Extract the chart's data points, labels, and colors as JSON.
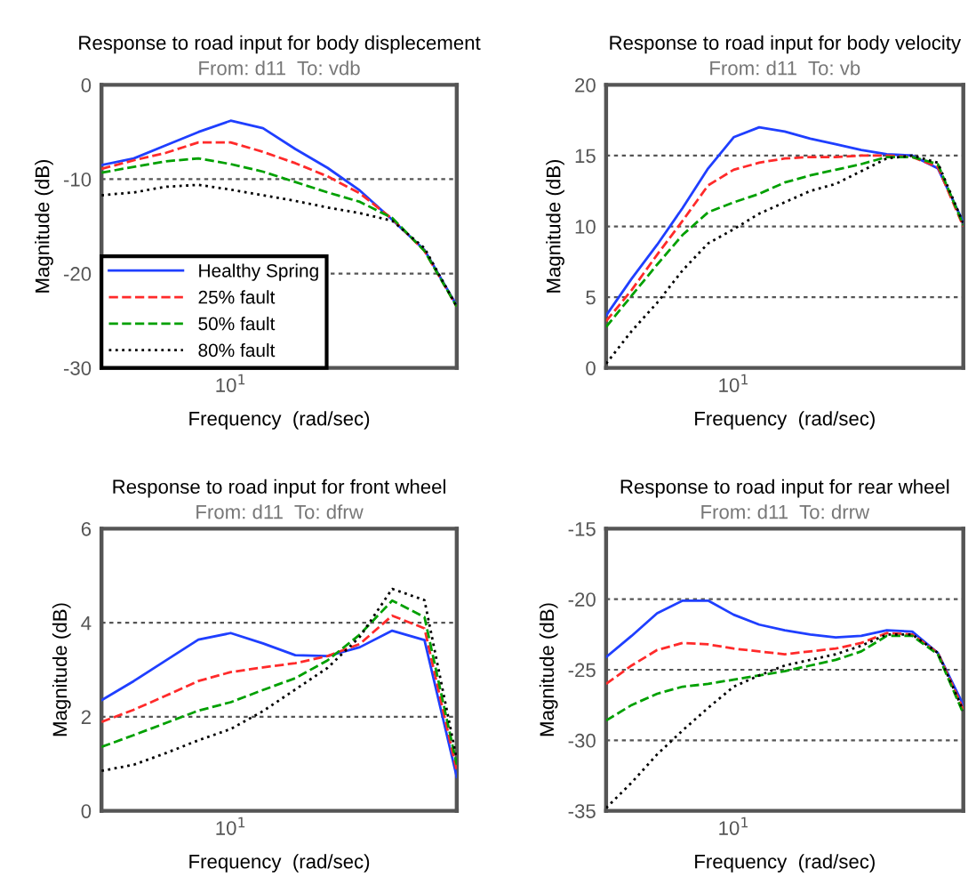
{
  "chart_data": [
    {
      "type": "line",
      "title": "Response to road input for body displecement",
      "subtitle": "From: d11  To: vdb",
      "xlabel": "Frequency  (rad/sec)",
      "ylabel": "Magnitude (dB)",
      "grid": "y",
      "legend": "bottom left",
      "marker": "none",
      "categories": [
        null,
        null,
        null,
        null,
        "10$^{1}$",
        null,
        null,
        null,
        null,
        null,
        null,
        null
      ],
      "ylim": [
        -30,
        0
      ],
      "yticks": [
        -30,
        -20,
        -10,
        0
      ],
      "series": [
        {
          "name": "Healthy Spring",
          "color": "#1f3fff",
          "line_style": "solid",
          "values": [
            -8.5,
            -7.8,
            -6.4,
            -5.0,
            -3.8,
            -4.6,
            -6.8,
            -8.8,
            -11.2,
            -14.3,
            -17.5,
            -23.4
          ]
        },
        {
          "name": "25% fault",
          "color": "#ff2a2a",
          "line_style": "dashed",
          "values": [
            -8.9,
            -8.0,
            -7.2,
            -6.1,
            -6.1,
            -7.1,
            -8.3,
            -9.7,
            -11.5,
            -14.2,
            -17.6,
            -23.5
          ]
        },
        {
          "name": "50% fault",
          "color": "#00a000",
          "line_style": "dashed",
          "values": [
            -9.3,
            -8.7,
            -8.1,
            -7.8,
            -8.4,
            -9.2,
            -10.3,
            -11.4,
            -12.4,
            -14.1,
            -17.6,
            -23.5
          ]
        },
        {
          "name": "80% fault",
          "color": "#000000",
          "line_style": "dotted",
          "values": [
            -11.7,
            -11.4,
            -10.8,
            -10.6,
            -11.1,
            -11.7,
            -12.3,
            -13.0,
            -13.6,
            -14.4,
            -17.3,
            -23.5
          ]
        }
      ]
    },
    {
      "type": "line",
      "title": "Response to road input for body velocity",
      "subtitle": "From: d11  To: vb",
      "xlabel": "Frequency  (rad/sec)",
      "ylabel": "Magnitude (dB)",
      "grid": "y",
      "marker": "none",
      "categories": [
        null,
        null,
        null,
        null,
        null,
        "10$^{1}$",
        null,
        null,
        null,
        null,
        null,
        null,
        null,
        null,
        null
      ],
      "ylim": [
        0,
        20
      ],
      "yticks": [
        0,
        5,
        10,
        15,
        20
      ],
      "series": [
        {
          "color": "#1f3fff",
          "line_style": "solid",
          "values": [
            3.7,
            6.3,
            8.7,
            11.3,
            14.1,
            16.3,
            17.0,
            16.7,
            16.2,
            15.8,
            15.4,
            15.1,
            15.0,
            14.1,
            10.3
          ]
        },
        {
          "color": "#ff2a2a",
          "line_style": "dashed",
          "values": [
            3.3,
            5.5,
            8.0,
            10.4,
            12.9,
            14.0,
            14.5,
            14.8,
            14.9,
            14.9,
            15.0,
            15.0,
            14.9,
            14.2,
            10.0
          ]
        },
        {
          "color": "#00a000",
          "line_style": "dashed",
          "values": [
            2.9,
            5.1,
            7.3,
            9.4,
            11.0,
            11.7,
            12.3,
            13.1,
            13.6,
            14.0,
            14.4,
            14.9,
            14.9,
            14.4,
            10.1
          ]
        },
        {
          "color": "#000000",
          "line_style": "dotted",
          "values": [
            0.3,
            2.6,
            4.6,
            6.9,
            8.8,
            9.8,
            10.9,
            11.7,
            12.5,
            13.0,
            13.9,
            14.8,
            15.0,
            14.5,
            10.2
          ]
        }
      ]
    },
    {
      "type": "line",
      "title": "Response to road input for front wheel",
      "subtitle": "From: d11  To: dfrw",
      "xlabel": "Frequency  (rad/sec)",
      "ylabel": "Magnitude (dB)",
      "grid": "y",
      "marker": "none",
      "categories": [
        null,
        null,
        null,
        null,
        "10$^{1}$",
        null,
        null,
        null,
        null,
        null,
        null,
        null
      ],
      "ylim": [
        0,
        6
      ],
      "yticks": [
        0,
        2,
        4,
        6
      ],
      "series": [
        {
          "color": "#1f3fff",
          "line_style": "solid",
          "values": [
            2.35,
            2.76,
            3.2,
            3.64,
            3.78,
            3.56,
            3.31,
            3.29,
            3.48,
            3.83,
            3.63,
            0.72
          ]
        },
        {
          "color": "#ff2a2a",
          "line_style": "dashed",
          "values": [
            1.89,
            2.15,
            2.45,
            2.76,
            2.95,
            3.05,
            3.14,
            3.29,
            3.55,
            4.15,
            3.88,
            0.85
          ]
        },
        {
          "color": "#00a000",
          "line_style": "dashed",
          "values": [
            1.36,
            1.61,
            1.87,
            2.13,
            2.31,
            2.57,
            2.82,
            3.2,
            3.75,
            4.47,
            4.12,
            0.98
          ]
        },
        {
          "color": "#000000",
          "line_style": "dotted",
          "values": [
            0.85,
            0.98,
            1.23,
            1.5,
            1.74,
            2.12,
            2.58,
            3.04,
            3.7,
            4.72,
            4.48,
            1.1
          ]
        }
      ]
    },
    {
      "type": "line",
      "title": "Response to road input for rear wheel",
      "subtitle": "From: d11  To: drrw",
      "xlabel": "Frequency  (rad/sec)",
      "ylabel": "Magnitude (dB)",
      "grid": "y",
      "marker": "none",
      "categories": [
        null,
        null,
        null,
        null,
        null,
        "10$^{1}$",
        null,
        null,
        null,
        null,
        null,
        null,
        null,
        null,
        null
      ],
      "ylim": [
        -35,
        -15
      ],
      "yticks": [
        -35,
        -30,
        -25,
        -20,
        -15
      ],
      "series": [
        {
          "color": "#1f3fff",
          "line_style": "solid",
          "values": [
            -24.1,
            -22.6,
            -21.0,
            -20.1,
            -20.1,
            -21.1,
            -21.8,
            -22.2,
            -22.5,
            -22.7,
            -22.6,
            -22.2,
            -22.3,
            -23.8,
            -27.5
          ]
        },
        {
          "color": "#ff2a2a",
          "line_style": "dashed",
          "values": [
            -26.0,
            -24.7,
            -23.6,
            -23.1,
            -23.2,
            -23.5,
            -23.7,
            -23.9,
            -23.7,
            -23.5,
            -23.1,
            -22.4,
            -22.5,
            -23.8,
            -27.8
          ]
        },
        {
          "color": "#00a000",
          "line_style": "dashed",
          "values": [
            -28.6,
            -27.5,
            -26.7,
            -26.2,
            -26.0,
            -25.7,
            -25.4,
            -25.1,
            -24.7,
            -24.3,
            -23.7,
            -22.6,
            -22.6,
            -23.9,
            -28.1
          ]
        },
        {
          "color": "#000000",
          "line_style": "dotted",
          "values": [
            -34.8,
            -33.0,
            -31.0,
            -29.3,
            -27.7,
            -26.2,
            -25.4,
            -24.7,
            -24.3,
            -23.9,
            -23.3,
            -22.5,
            -22.5,
            -23.8,
            -27.9
          ]
        }
      ]
    }
  ]
}
